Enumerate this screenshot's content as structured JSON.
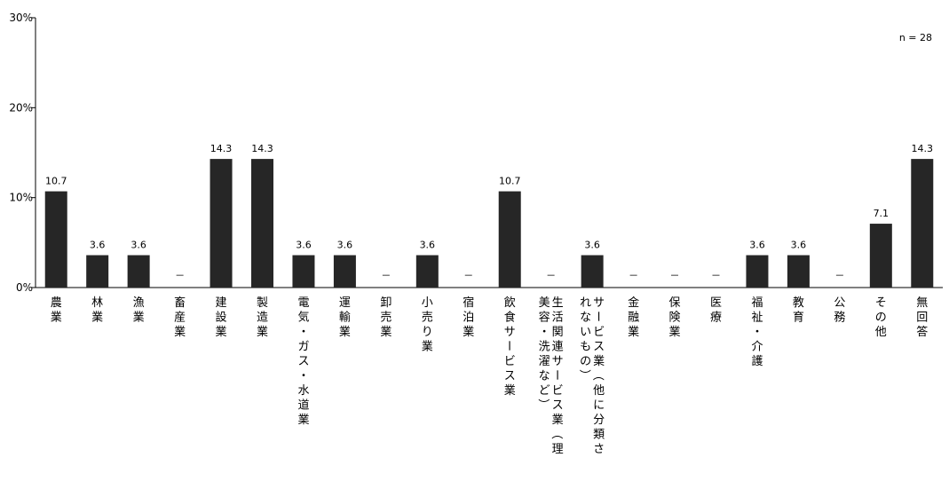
{
  "chart_data": {
    "type": "bar",
    "note": "n = 28",
    "ylim": [
      0,
      30
    ],
    "yticks": [
      "0%",
      "10%",
      "20%",
      "30%"
    ],
    "bar_color": "#262626",
    "categories": [
      "農業",
      "林業",
      "漁業",
      "畜産業",
      "建設業",
      "製造業",
      "電気・ガス・水道業",
      "運輸業",
      "卸売業",
      "小売り業",
      "宿泊業",
      "飲食サービス業",
      [
        "生活関連サービス業（理",
        "美容・洗濯など）"
      ],
      [
        "サービス業（他に分類さ",
        "れないもの）"
      ],
      "金融業",
      "保険業",
      "医療",
      "福祉・介護",
      "教育",
      "公務",
      "その他",
      "無回答"
    ],
    "values": [
      10.7,
      3.6,
      3.6,
      null,
      14.3,
      14.3,
      3.6,
      3.6,
      null,
      3.6,
      null,
      10.7,
      null,
      3.6,
      null,
      null,
      null,
      3.6,
      3.6,
      null,
      7.1,
      14.3
    ],
    "labels": [
      "10.7",
      "3.6",
      "3.6",
      "－",
      "14.3",
      "14.3",
      "3.6",
      "3.6",
      "－",
      "3.6",
      "－",
      "10.7",
      "－",
      "3.6",
      "－",
      "－",
      "－",
      "3.6",
      "3.6",
      "－",
      "7.1",
      "14.3"
    ]
  }
}
